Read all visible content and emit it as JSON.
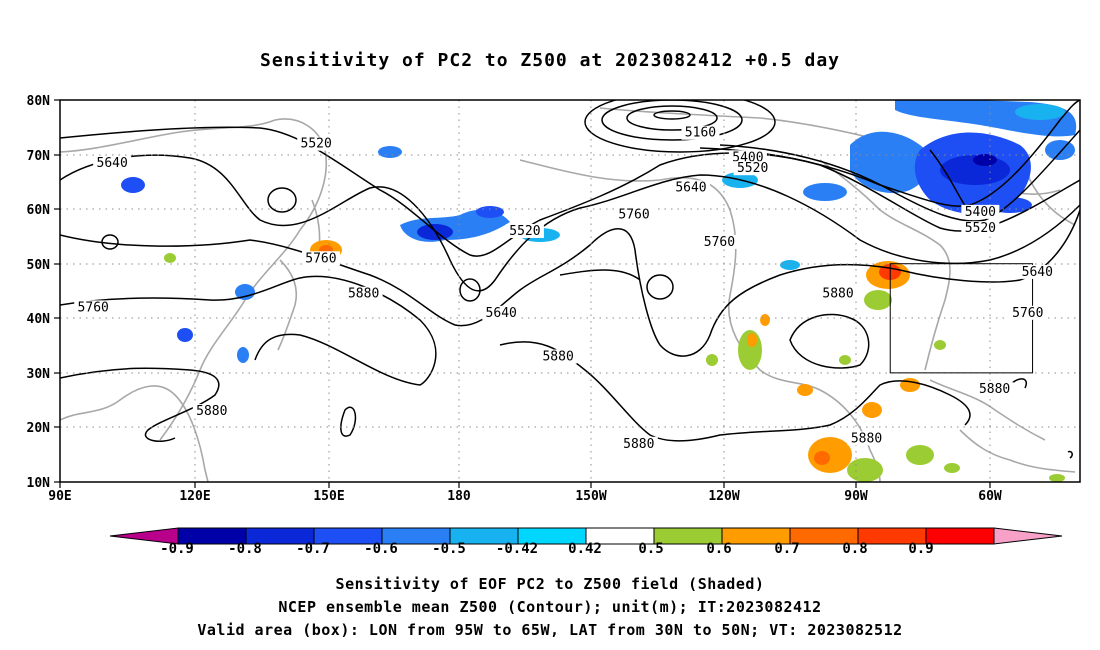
{
  "title": "Sensitivity of PC2 to Z500 at 2023082412 +0.5 day",
  "axes": {
    "lat_labels": [
      "80N",
      "70N",
      "60N",
      "50N",
      "40N",
      "30N",
      "20N",
      "10N"
    ],
    "lon_labels": [
      "90E",
      "120E",
      "150E",
      "180",
      "150W",
      "120W",
      "90W",
      "60W"
    ]
  },
  "contour_labels": [
    {
      "text": "5520",
      "lon": 144,
      "lat": 72
    },
    {
      "text": "5640",
      "lon": 101,
      "lat": 68.5
    },
    {
      "text": "5160",
      "lon": -135,
      "lat": 74
    },
    {
      "text": "5400",
      "lon": -125,
      "lat": 69.5
    },
    {
      "text": "5520",
      "lon": -124,
      "lat": 67.5
    },
    {
      "text": "5640",
      "lon": -137,
      "lat": 64
    },
    {
      "text": "5760",
      "lon": -149,
      "lat": 59
    },
    {
      "text": "5520",
      "lon": -172,
      "lat": 56
    },
    {
      "text": "5760",
      "lon": -131,
      "lat": 54
    },
    {
      "text": "5760",
      "lon": 145,
      "lat": 51
    },
    {
      "text": "5880",
      "lon": 154,
      "lat": 44.5
    },
    {
      "text": "5640",
      "lon": -177,
      "lat": 41
    },
    {
      "text": "5880",
      "lon": -106,
      "lat": 44.5
    },
    {
      "text": "5400",
      "lon": -76,
      "lat": 59.5
    },
    {
      "text": "5520",
      "lon": -76,
      "lat": 56.5
    },
    {
      "text": "5640",
      "lon": -64,
      "lat": 48.5
    },
    {
      "text": "5760",
      "lon": -66,
      "lat": 41
    },
    {
      "text": "5760",
      "lon": 97,
      "lat": 42
    },
    {
      "text": "5880",
      "lon": -165,
      "lat": 33
    },
    {
      "text": "5880",
      "lon": -73,
      "lat": 27
    },
    {
      "text": "5880",
      "lon": 122,
      "lat": 23
    },
    {
      "text": "5880",
      "lon": -148,
      "lat": 17
    },
    {
      "text": "5880",
      "lon": -100,
      "lat": 18
    }
  ],
  "valid_box": {
    "lon_min": -95,
    "lon_max": -65,
    "lat_min": 30,
    "lat_max": 50
  },
  "colorbar": {
    "labels": [
      "-0.9",
      "-0.8",
      "-0.7",
      "-0.6",
      "-0.5",
      "-0.42",
      "0.42",
      "0.5",
      "0.6",
      "0.7",
      "0.8",
      "0.9"
    ],
    "colors": [
      "#b8008a",
      "#0000a8",
      "#0a28d8",
      "#1e4ff5",
      "#2a7ff5",
      "#19b2f0",
      "#00d7ff",
      "#ffffff",
      "#9ccc33",
      "#ff9d00",
      "#ff6a00",
      "#ff3a00",
      "#ff0000",
      "#f7a1c9"
    ]
  },
  "footer": {
    "line1": "Sensitivity of EOF PC2 to Z500 field (Shaded)",
    "line2": "NCEP ensemble mean Z500 (Contour); unit(m); IT:2023082412",
    "line3": "Valid area (box): LON from 95W to 65W, LAT from 30N to 50N; VT: 2023082512"
  }
}
